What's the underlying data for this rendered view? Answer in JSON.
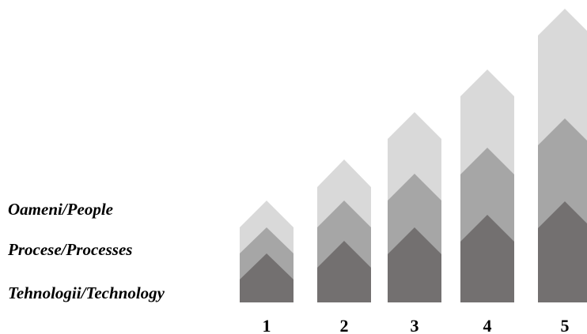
{
  "layers": [
    {
      "key": "people",
      "label": "Oameni/People",
      "color": "#d9d9d9"
    },
    {
      "key": "processes",
      "label": "Procese/Processes",
      "color": "#a6a6a6"
    },
    {
      "key": "technology",
      "label": "Tehnologii/Technology",
      "color": "#737070"
    }
  ],
  "steps": [
    {
      "number": "1"
    },
    {
      "number": "2"
    },
    {
      "number": "3"
    },
    {
      "number": "4"
    },
    {
      "number": "5"
    }
  ]
}
